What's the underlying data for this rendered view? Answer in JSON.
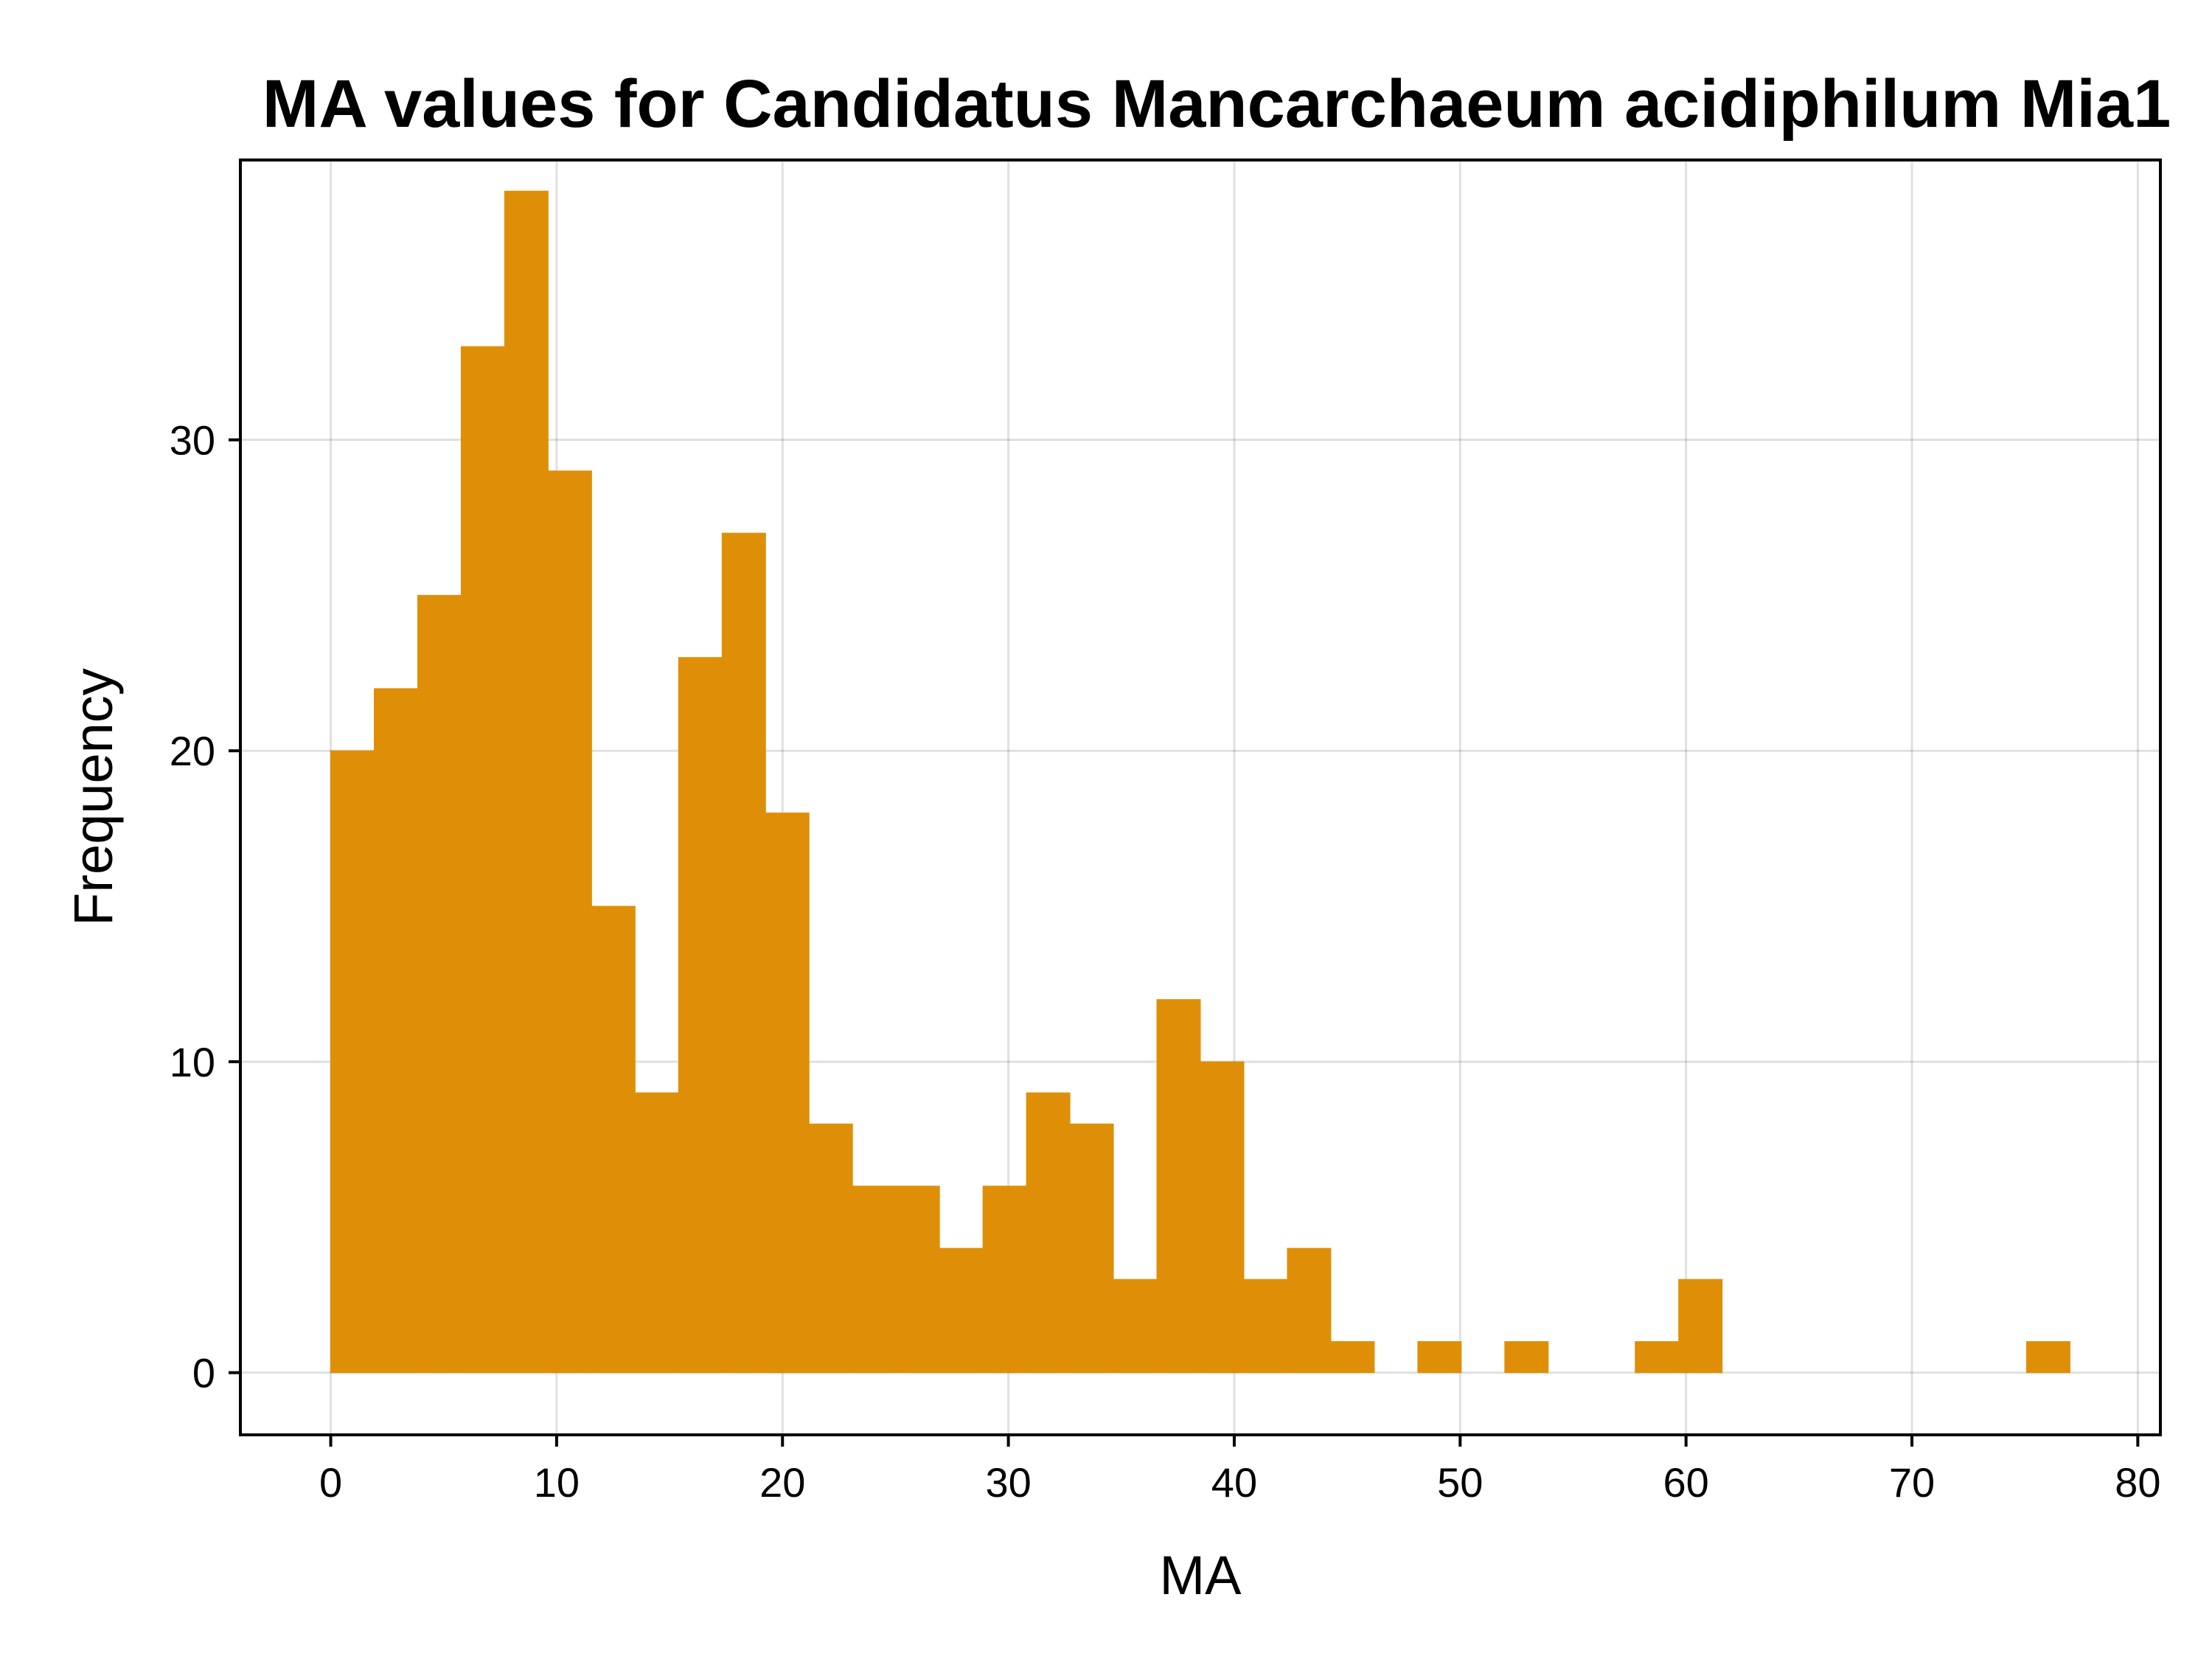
{
  "chart_data": {
    "type": "bar",
    "title": "MA values for Candidatus Mancarchaeum acidiphilum Mia1",
    "xlabel": "MA",
    "ylabel": "Frequency",
    "xlim": [
      -4,
      81
    ],
    "ylim": [
      -2,
      39
    ],
    "x_ticks": [
      "0",
      "10",
      "20",
      "30",
      "40",
      "50",
      "60",
      "70",
      "80"
    ],
    "y_ticks": [
      "0",
      "10",
      "20",
      "30"
    ],
    "grid": true,
    "bar_color": "#df8f07",
    "bin_width": 1.925,
    "bin_starts": [
      0,
      1.925,
      3.85,
      5.775,
      7.7,
      9.625,
      11.55,
      13.475,
      15.4,
      17.325,
      19.25,
      21.175,
      23.1,
      25.025,
      26.95,
      28.875,
      30.8,
      32.725,
      34.65,
      36.575,
      38.5,
      40.425,
      42.35,
      44.275,
      46.2,
      48.125,
      50.05,
      51.975,
      53.9,
      55.825,
      57.75,
      59.675,
      61.6,
      63.525,
      65.45,
      67.375,
      69.3,
      71.225,
      73.15,
      75.075
    ],
    "values": [
      20,
      22,
      25,
      33,
      38,
      29,
      15,
      9,
      23,
      27,
      18,
      8,
      6,
      6,
      4,
      6,
      9,
      8,
      3,
      12,
      10,
      3,
      4,
      1,
      0,
      1,
      0,
      1,
      0,
      0,
      1,
      3,
      0,
      0,
      0,
      0,
      0,
      0,
      0,
      1
    ]
  }
}
